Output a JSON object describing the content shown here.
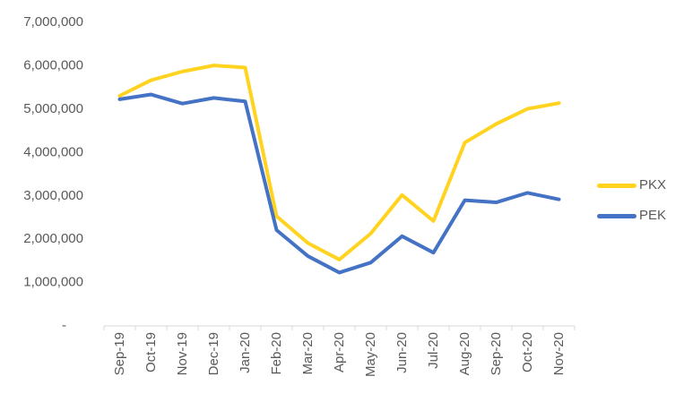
{
  "chart_data": {
    "type": "line",
    "title": "",
    "xlabel": "",
    "ylabel": "",
    "grid": false,
    "legend_position": "right",
    "axis_line_color": "#D9D9D9",
    "label_color": "#595959",
    "categories": [
      "Sep-19",
      "Oct-19",
      "Nov-19",
      "Dec-19",
      "Jan-20",
      "Feb-20",
      "Mar-20",
      "Apr-20",
      "May-20",
      "Jun-20",
      "Jul-20",
      "Aug-20",
      "Sep-20",
      "Oct-20",
      "Nov-20"
    ],
    "series": [
      {
        "name": "PKX",
        "color": "#FFD320",
        "values": [
          5300000,
          5660000,
          5860000,
          6000000,
          5950000,
          2520000,
          1900000,
          1520000,
          2120000,
          3010000,
          2410000,
          4220000,
          4650000,
          5000000,
          5130000
        ]
      },
      {
        "name": "PEK",
        "color": "#4472C4",
        "values": [
          5220000,
          5330000,
          5120000,
          5250000,
          5170000,
          2200000,
          1600000,
          1220000,
          1450000,
          2060000,
          1680000,
          2890000,
          2840000,
          3060000,
          2910000
        ]
      }
    ],
    "y_axis": {
      "min": 0,
      "max": 7000000,
      "tick_values": [
        7000000,
        6000000,
        5000000,
        4000000,
        3000000,
        2000000,
        1000000,
        0
      ],
      "tick_labels": [
        "7,000,000",
        "6,000,000",
        "5,000,000",
        "4,000,000",
        "3,000,000",
        "2,000,000",
        "1,000,000",
        "-"
      ]
    }
  }
}
